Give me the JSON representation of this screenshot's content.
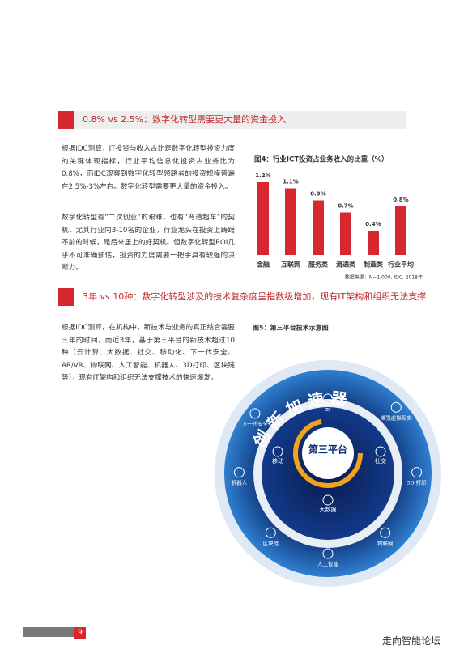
{
  "section1": {
    "heading": "0.8% vs 2.5%：数字化转型需要更大量的资金投入",
    "paragraphs": [
      "根据IDC测算，IT投资与收入占比是数字化转型投资力度的关键体现指标，行业平均信息化投资占业务比为0.8%，而IDC观察到数字化转型领路者的投资规模普遍在2.5%-3%左右。数字化转型需要更大量的资金投入。",
      "数字化转型有“二次创业”的艰难，也有“弯道超车”的契机，尤其行业内3-10名的企业，行业龙头在投资上踌躇不前的时候，是后来居上的好契机。但数字化转型ROI几乎不可准确预估，投资的力度需要一把手具有较强的决断力。"
    ]
  },
  "figure4": {
    "type": "bar",
    "title": "图4：行业ICT投资占业务收入的比重（%）",
    "categories": [
      "金融",
      "互联网",
      "服务类",
      "流通类",
      "制造类",
      "行业平均"
    ],
    "values": [
      1.2,
      1.1,
      0.9,
      0.7,
      0.4,
      0.8
    ],
    "value_labels": [
      "1.2%",
      "1.1%",
      "0.9%",
      "0.7%",
      "0.4%",
      "0.8%"
    ],
    "color": "#d7282f",
    "source": "数据来源：N=1,000, IDC, 2018年"
  },
  "section2": {
    "heading": "3年 vs 10种：数字化转型涉及的技术复杂度呈指数级增加，现有IT架构和组织无法支撑",
    "paragraphs": [
      "根据IDC测算，在机构中，新技术与业务的真正结合需要三年的时间，而近3年，基于第三平台的新技术超过10种（云计算、大数据、社交、移动化、下一代安全、AR/VR、物联网、人工智能、机器人、3D打印、区块链等），现有IT架构和组织无法支撑技术的快速爆发。"
    ]
  },
  "figure5": {
    "title": "图5：第三平台技术示意图",
    "ring_title": "创新加速器",
    "center": "第三平台",
    "inner_items": [
      "云",
      "社交",
      "大数据",
      "移动"
    ],
    "outer_items": [
      "增强虚拟现实",
      "3D 打印",
      "物联网",
      "人工智能",
      "区块链",
      "机器人",
      "下一代安全"
    ]
  },
  "footer": {
    "page": "9",
    "brand": "走向智能论坛"
  }
}
